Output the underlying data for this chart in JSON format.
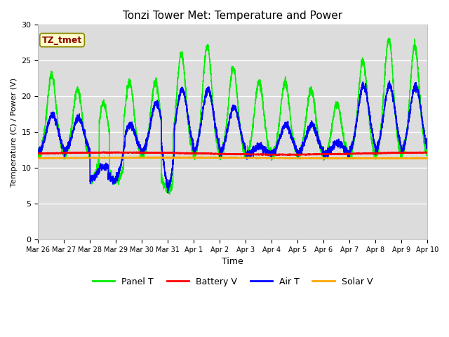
{
  "title": "Tonzi Tower Met: Temperature and Power",
  "xlabel": "Time",
  "ylabel": "Temperature (C) / Power (V)",
  "ylim": [
    0,
    30
  ],
  "yticks": [
    0,
    5,
    10,
    15,
    20,
    25,
    30
  ],
  "bg_color": "#dcdcdc",
  "annotation_text": "TZ_tmet",
  "annotation_color": "#8b0000",
  "annotation_bg": "#ffffcc",
  "legend_entries": [
    "Panel T",
    "Battery V",
    "Air T",
    "Solar V"
  ],
  "line_colors": [
    "#00ee00",
    "#ff0000",
    "#0000ff",
    "#ffa500"
  ],
  "xtick_labels": [
    "Mar 26",
    "Mar 27",
    "Mar 28",
    "Mar 29",
    "Mar 30",
    "Mar 31",
    "Apr 1",
    "Apr 2",
    "Apr 3",
    "Apr 4",
    "Apr 5",
    "Apr 6",
    "Apr 7",
    "Apr 8",
    "Apr 9",
    "Apr 10"
  ],
  "xtick_positions": [
    0,
    1,
    2,
    3,
    4,
    5,
    6,
    7,
    8,
    9,
    10,
    11,
    12,
    13,
    14,
    15
  ],
  "battery_base": 12.0,
  "solar_base": 11.35
}
